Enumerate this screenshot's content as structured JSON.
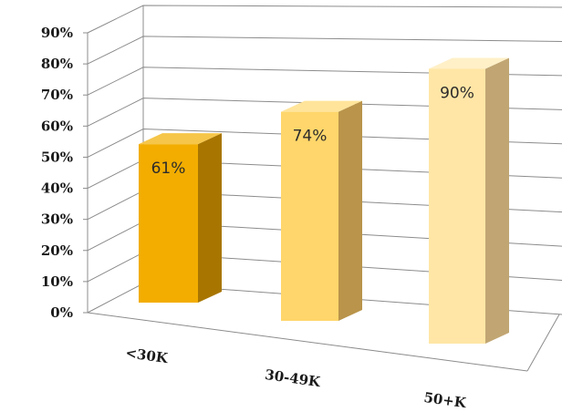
{
  "chart_data": {
    "type": "bar",
    "style": "3d-column",
    "categories": [
      "<30K",
      "30-49K",
      "50+K"
    ],
    "values": [
      61,
      74,
      90
    ],
    "data_labels": [
      "61%",
      "74%",
      "90%"
    ],
    "ylim": [
      0,
      90
    ],
    "y_ticks": [
      "0%",
      "10%",
      "20%",
      "30%",
      "40%",
      "50%",
      "60%",
      "70%",
      "80%",
      "90%"
    ],
    "grid": true,
    "legend": "none",
    "title": "",
    "xlabel": "",
    "ylabel": "",
    "colors": {
      "bars": [
        {
          "front": "#f2ad00",
          "side": "#a87600",
          "top": "#f6c64a"
        },
        {
          "front": "#ffd66b",
          "side": "#b9944a",
          "top": "#ffe49a"
        },
        {
          "front": "#ffe6a6",
          "side": "#c1a673",
          "top": "#fff0c8"
        }
      ],
      "grid": "#8c8c8c"
    }
  }
}
